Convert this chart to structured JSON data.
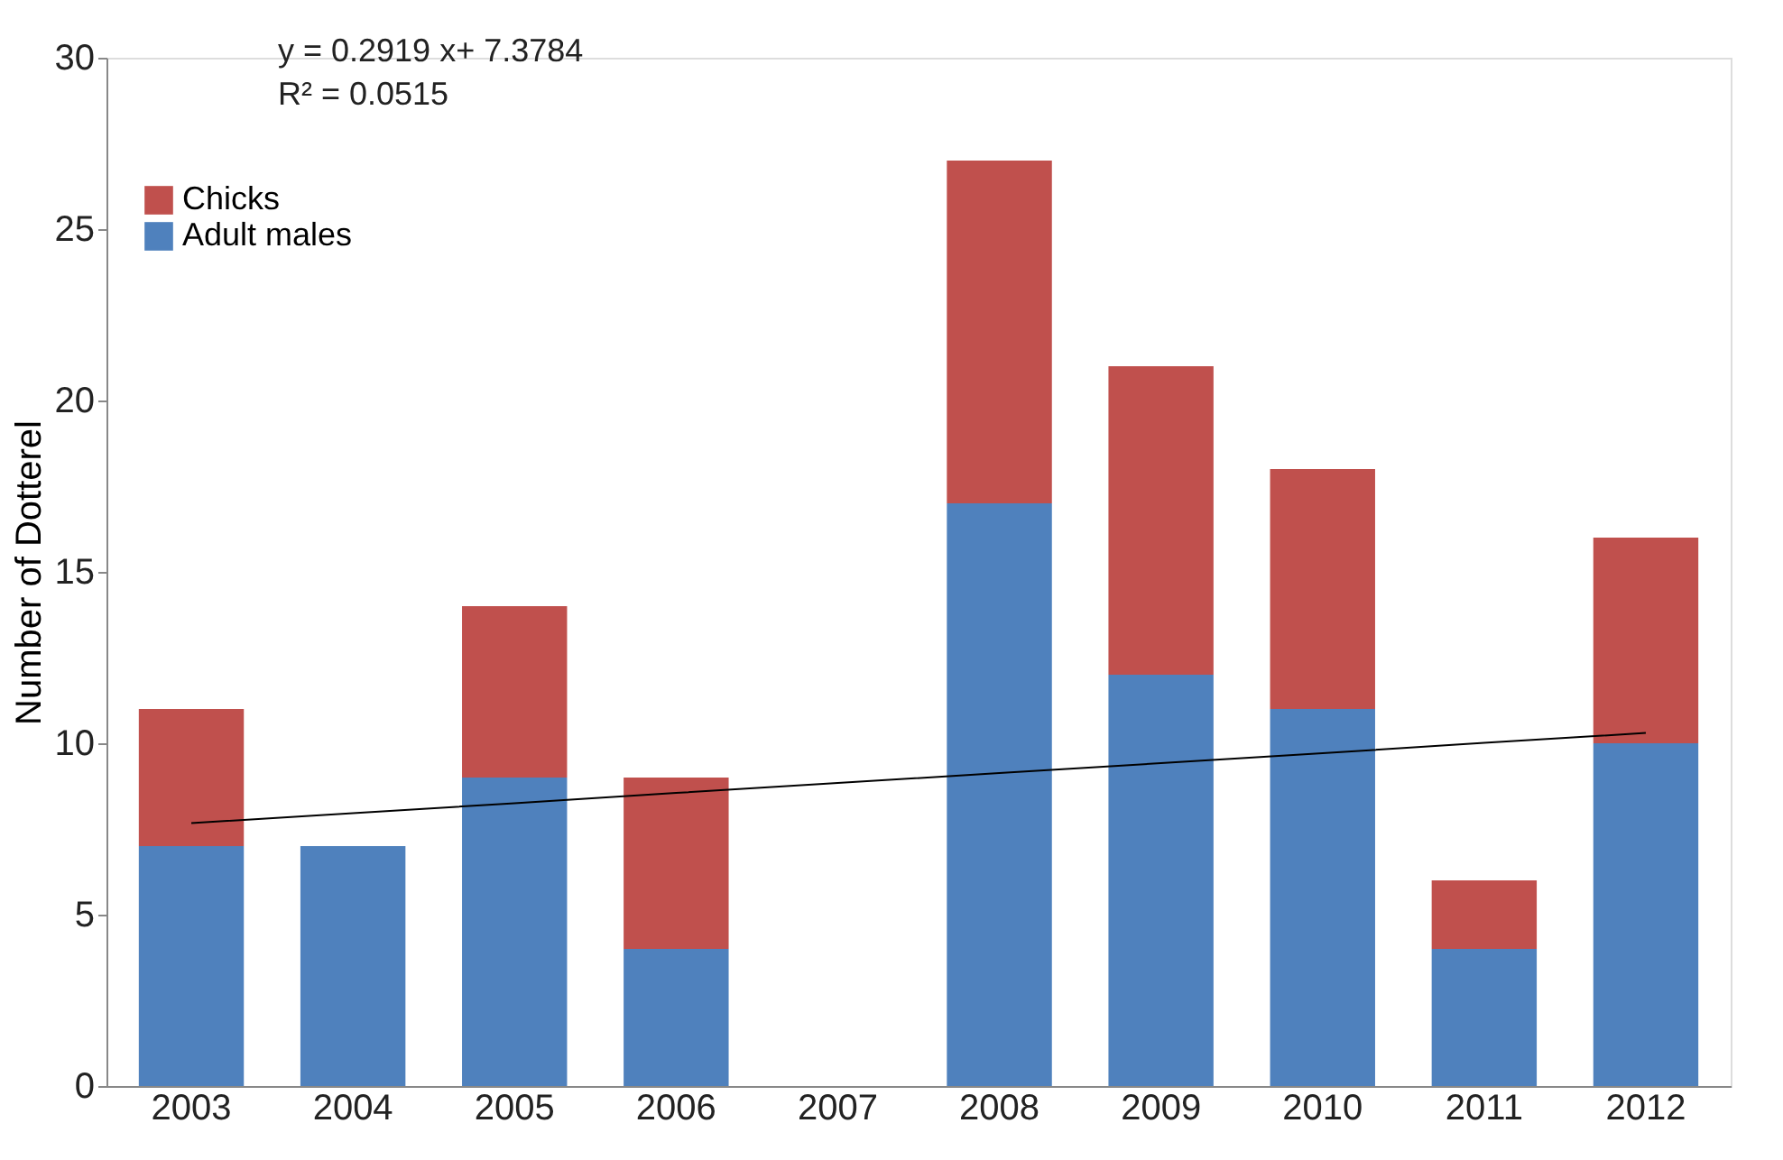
{
  "chart_data": {
    "type": "bar",
    "stacked": true,
    "ylabel": "Number of Dotterel",
    "categories": [
      "2003",
      "2004",
      "2005",
      "2006",
      "2007",
      "2008",
      "2009",
      "2010",
      "2011",
      "2012"
    ],
    "series": [
      {
        "name": "Adult males",
        "color": "#4f81bd",
        "values": [
          7,
          7,
          9,
          4,
          0,
          17,
          12,
          11,
          4,
          10
        ]
      },
      {
        "name": "Chicks",
        "color": "#c0504d",
        "values": [
          4,
          0,
          5,
          5,
          0,
          10,
          9,
          7,
          2,
          6
        ]
      },
      {
        "type": "line",
        "color": "#000000",
        "line_style": "solid",
        "values": [
          7.67,
          7.96,
          8.25,
          8.55,
          8.84,
          9.13,
          9.42,
          9.71,
          10.01,
          10.3
        ]
      }
    ],
    "ylim": [
      0,
      30
    ],
    "yticks": [
      0,
      5,
      10,
      15,
      20,
      25,
      30
    ],
    "grid": false,
    "legend": "top left",
    "annotations": [
      "y = 0.2919 x+ 7.3784",
      "R² = 0.0515"
    ]
  }
}
